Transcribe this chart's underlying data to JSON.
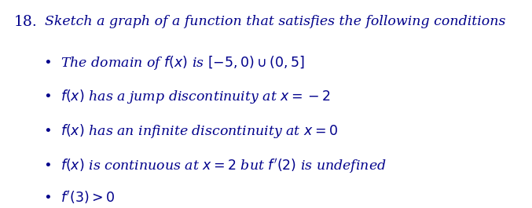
{
  "problem_number": "18.",
  "title": "Sketch a graph of a function that satisfies the following conditions",
  "bullets": [
    "The domain of $f(x)$ is $[-5,0)\\cup(0,5]$",
    "$f(x)$ has a jump discontinuity at $x=-2$",
    "$f(x)$ has an infinite discontinuity at $x=0$",
    "$f(x)$ is continuous at $x=2$ but $f'(2)$ is undefined",
    "$f'(3)>0$"
  ],
  "text_color": "#00008B",
  "bg_color": "#ffffff",
  "title_fontsize": 12.5,
  "bullet_fontsize": 12.5,
  "number_fontsize": 13.5
}
